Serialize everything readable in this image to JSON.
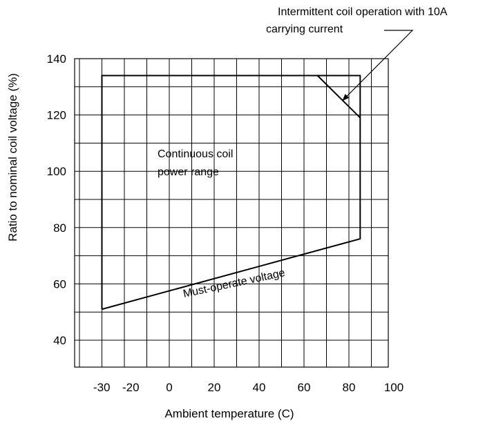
{
  "chart_data": {
    "type": "line",
    "xlabel": "Ambient temperature (C)",
    "ylabel": "Ratio to nominal coil voltage (%)",
    "x_tick_labels": [
      -30,
      -20,
      0,
      20,
      40,
      60,
      80,
      100
    ],
    "y_tick_labels": [
      140,
      120,
      100,
      80,
      60,
      40
    ],
    "xlim": [
      -40,
      100
    ],
    "ylim": [
      35,
      140
    ],
    "grid": true,
    "series": [
      {
        "points": [
          [
            -30,
            51
          ],
          [
            -30,
            134
          ],
          [
            85,
            134
          ],
          [
            85,
            76
          ],
          [
            -30,
            51
          ]
        ]
      },
      {
        "points": [
          [
            66,
            134
          ],
          [
            85,
            119
          ]
        ]
      }
    ],
    "annotations": [
      {
        "key": "continuous",
        "lines": [
          "Continuous coil",
          "power range"
        ],
        "x": 0,
        "y": 104
      },
      {
        "key": "must_operate",
        "text": "Must-operate voltage",
        "x": 27,
        "y": 60
      },
      {
        "key": "intermittent",
        "lines": [
          "Intermittent coil operation with 10A",
          "carrying current"
        ]
      }
    ],
    "leader_target": [
      77,
      125
    ]
  }
}
